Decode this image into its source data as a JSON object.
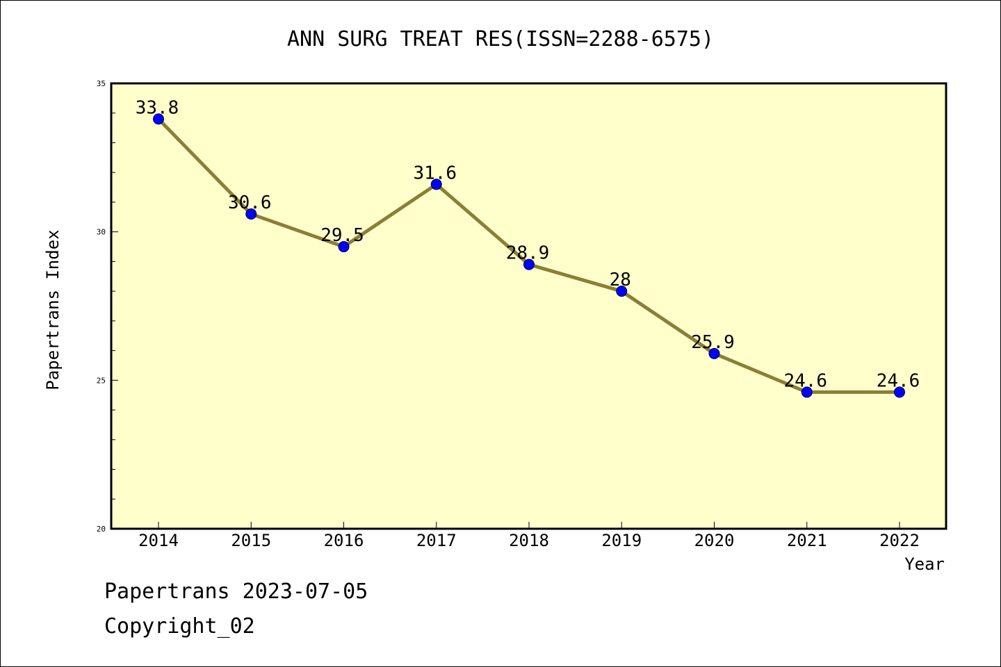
{
  "chart_data": {
    "type": "line",
    "title": "ANN SURG TREAT RES(ISSN=2288-6575)",
    "xlabel": "Year",
    "ylabel": "Papertrans Index",
    "categories": [
      "2014",
      "2015",
      "2016",
      "2017",
      "2018",
      "2019",
      "2020",
      "2021",
      "2022"
    ],
    "values": [
      33.8,
      30.6,
      29.5,
      31.6,
      28.9,
      28,
      25.9,
      24.6,
      24.6
    ],
    "data_labels": [
      "33.8",
      "30.6",
      "29.5",
      "31.6",
      "28.9",
      "28",
      "25.9",
      "24.6",
      "24.6"
    ],
    "ylim": [
      20,
      35
    ],
    "yticks": [
      "20",
      "25",
      "30",
      "35"
    ],
    "grid": false,
    "legend": "none",
    "colors": {
      "plot_background": "#FFFFCC",
      "line": "#8B7F36",
      "marker": "#0000FF"
    }
  },
  "footer": {
    "date_text": "Papertrans 2023-07-05",
    "copyright_text": "Copyright_02"
  }
}
